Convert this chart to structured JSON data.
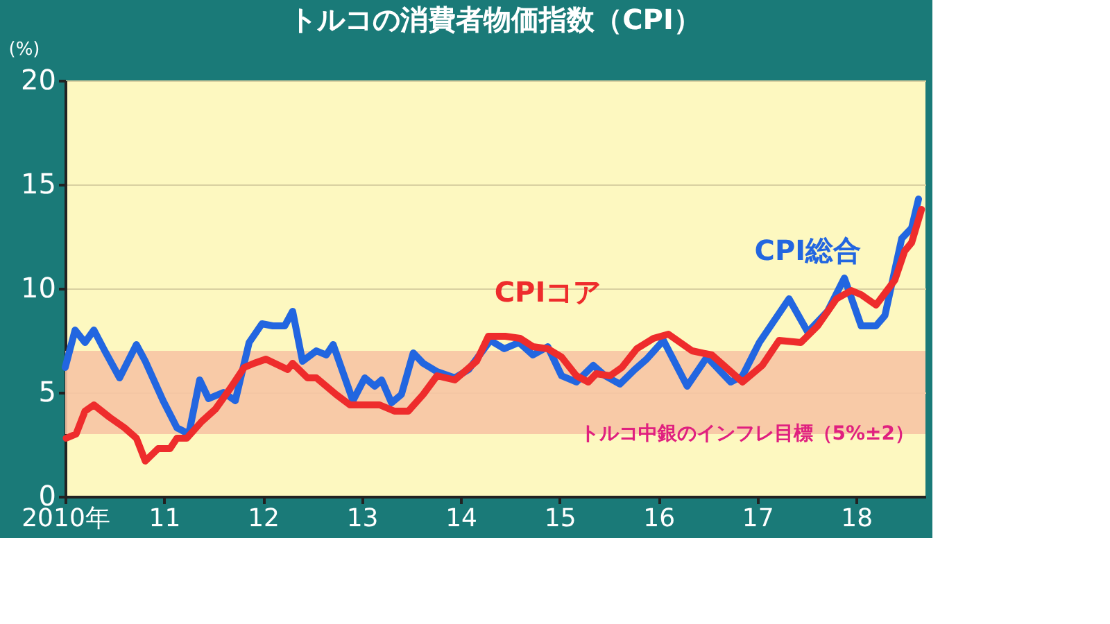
{
  "chart_data": {
    "type": "line",
    "title": "トルコの消費者物価指数（CPI）",
    "ylabel": "(%)",
    "xlim": [
      2010,
      2018.7
    ],
    "xticks": [
      {
        "value": 2010,
        "label": "2010年"
      },
      {
        "value": 2011,
        "label": "11"
      },
      {
        "value": 2012,
        "label": "12"
      },
      {
        "value": 2013,
        "label": "13"
      },
      {
        "value": 2014,
        "label": "14"
      },
      {
        "value": 2015,
        "label": "15"
      },
      {
        "value": 2016,
        "label": "16"
      },
      {
        "value": 2017,
        "label": "17"
      },
      {
        "value": 2018,
        "label": "18"
      }
    ],
    "ylim": [
      0,
      20
    ],
    "yticks": [
      0,
      5,
      10,
      15,
      20
    ],
    "grid": "y",
    "legend": false,
    "marker": "none",
    "line_style": "solid",
    "bands": [
      {
        "axis": "y",
        "from": 3,
        "to": 7,
        "label": "トルコ中銀のインフレ目標（5%±2）",
        "color": "#f7c4a4"
      }
    ],
    "series": [
      {
        "name": "CPI総合",
        "color": "#2266e0",
        "x": [
          2010.0,
          2010.1,
          2010.2,
          2010.29,
          2010.4,
          2010.55,
          2010.72,
          2010.81,
          2010.99,
          2011.13,
          2011.25,
          2011.36,
          2011.45,
          2011.6,
          2011.72,
          2011.86,
          2011.99,
          2012.1,
          2012.22,
          2012.3,
          2012.4,
          2012.54,
          2012.64,
          2012.71,
          2012.91,
          2013.03,
          2013.13,
          2013.2,
          2013.3,
          2013.4,
          2013.52,
          2013.62,
          2013.76,
          2013.94,
          2014.08,
          2014.3,
          2014.44,
          2014.59,
          2014.73,
          2014.88,
          2015.02,
          2015.17,
          2015.34,
          2015.46,
          2015.61,
          2015.76,
          2015.88,
          2016.05,
          2016.29,
          2016.49,
          2016.61,
          2016.73,
          2016.85,
          2017.02,
          2017.32,
          2017.51,
          2017.71,
          2017.88,
          2018.05,
          2018.2,
          2018.29,
          2018.46,
          2018.56,
          2018.63
        ],
        "values": [
          6.2,
          8.0,
          7.4,
          8.0,
          7.0,
          5.7,
          7.3,
          6.5,
          4.6,
          3.3,
          3.0,
          5.6,
          4.7,
          5.0,
          4.6,
          7.4,
          8.3,
          8.2,
          8.2,
          8.9,
          6.5,
          7.0,
          6.8,
          7.3,
          4.6,
          5.7,
          5.3,
          5.6,
          4.5,
          4.9,
          6.9,
          6.4,
          6.0,
          5.7,
          6.1,
          7.5,
          7.1,
          7.4,
          6.8,
          7.2,
          5.8,
          5.5,
          6.3,
          5.8,
          5.4,
          6.1,
          6.6,
          7.5,
          5.3,
          6.7,
          6.1,
          5.5,
          5.8,
          7.4,
          9.5,
          7.9,
          8.9,
          10.5,
          8.2,
          8.2,
          8.7,
          12.4,
          12.9,
          14.3
        ]
      },
      {
        "name": "CPIコア",
        "color": "#ee2c2c",
        "x": [
          2010.01,
          2010.11,
          2010.2,
          2010.29,
          2010.45,
          2010.6,
          2010.72,
          2010.81,
          2010.94,
          2011.06,
          2011.13,
          2011.23,
          2011.38,
          2011.52,
          2011.67,
          2011.81,
          2011.91,
          2012.03,
          2012.25,
          2012.3,
          2012.45,
          2012.54,
          2012.74,
          2012.88,
          2013.03,
          2013.18,
          2013.33,
          2013.47,
          2013.62,
          2013.76,
          2013.94,
          2014.16,
          2014.28,
          2014.45,
          2014.6,
          2014.73,
          2014.88,
          2015.02,
          2015.17,
          2015.29,
          2015.37,
          2015.51,
          2015.63,
          2015.78,
          2015.95,
          2016.1,
          2016.34,
          2016.54,
          2016.66,
          2016.85,
          2017.05,
          2017.22,
          2017.44,
          2017.61,
          2017.8,
          2017.95,
          2018.05,
          2018.2,
          2018.39,
          2018.49,
          2018.56,
          2018.66
        ],
        "values": [
          2.8,
          3.0,
          4.1,
          4.4,
          3.8,
          3.3,
          2.8,
          1.7,
          2.3,
          2.3,
          2.8,
          2.8,
          3.6,
          4.2,
          5.2,
          6.2,
          6.4,
          6.6,
          6.1,
          6.4,
          5.7,
          5.7,
          4.9,
          4.4,
          4.4,
          4.4,
          4.1,
          4.1,
          4.9,
          5.8,
          5.6,
          6.5,
          7.7,
          7.7,
          7.6,
          7.2,
          7.1,
          6.7,
          5.8,
          5.5,
          5.9,
          5.8,
          6.2,
          7.1,
          7.6,
          7.8,
          7.0,
          6.8,
          6.3,
          5.5,
          6.3,
          7.5,
          7.4,
          8.2,
          9.5,
          9.9,
          9.7,
          9.2,
          10.4,
          11.8,
          12.2,
          13.8
        ]
      }
    ]
  }
}
